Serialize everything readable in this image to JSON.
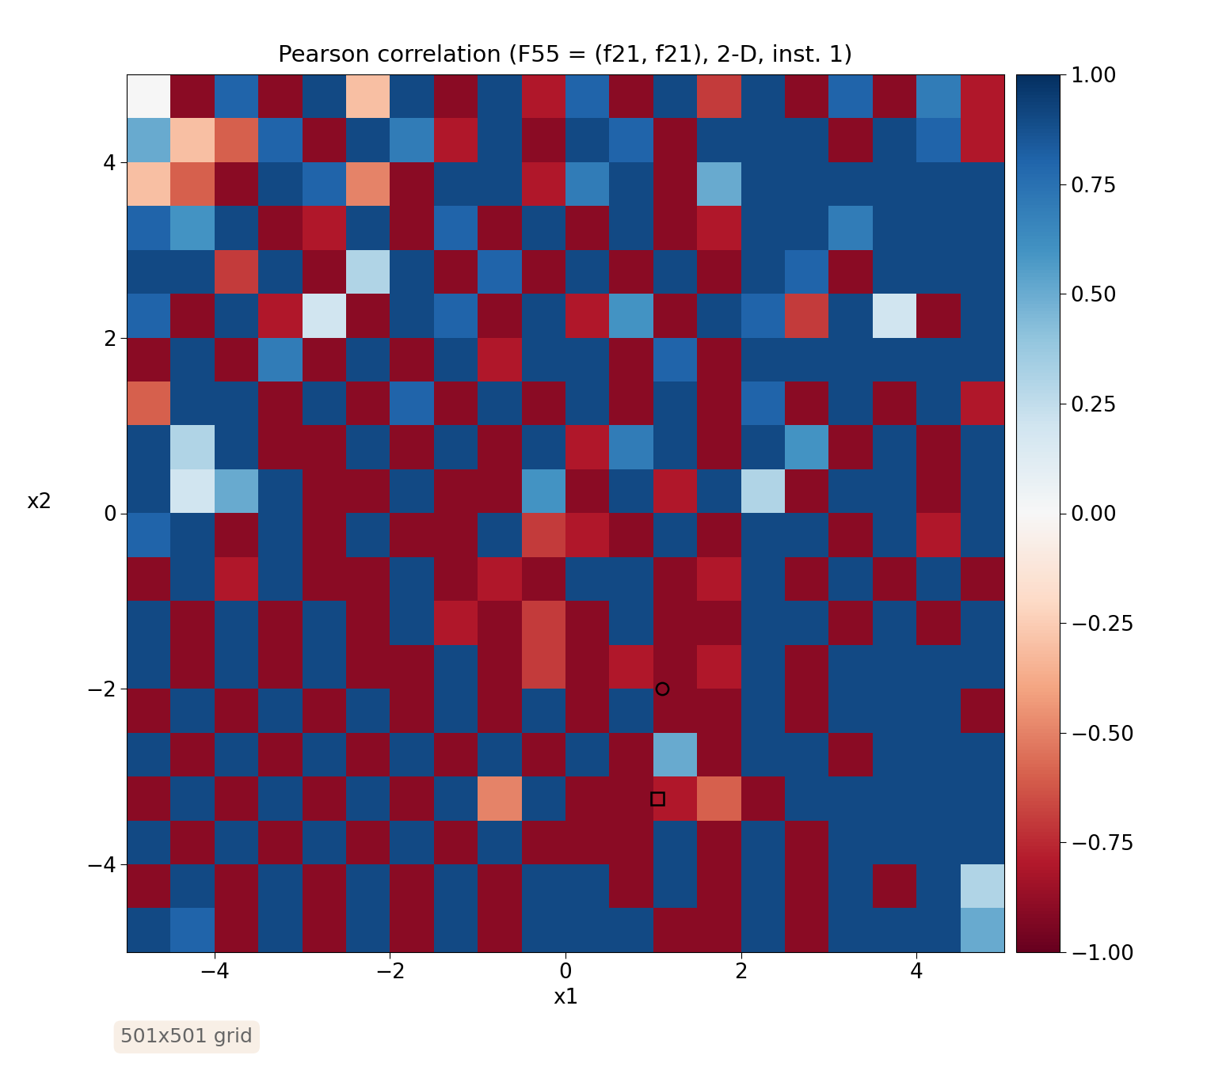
{
  "chart_data": {
    "type": "heatmap",
    "title": "Pearson correlation (F55 = (f21, f21), 2-D, inst. 1)",
    "x_label": "x1",
    "y_label": "x2",
    "xlim": [
      -5,
      5
    ],
    "ylim": [
      -5,
      5
    ],
    "xticks": [
      {
        "value": -4,
        "label": "−4"
      },
      {
        "value": -2,
        "label": "−2"
      },
      0,
      2,
      4
    ],
    "yticks": [
      {
        "value": -4,
        "label": "−4"
      },
      {
        "value": -2,
        "label": "−2"
      },
      0,
      2,
      4
    ],
    "color": "RdBu",
    "colorbar_range": [
      -1,
      1
    ],
    "colorbar_ticks": [
      {
        "value": -1,
        "label": "−1.00"
      },
      {
        "value": -0.75,
        "label": "−0.75"
      },
      {
        "value": -0.5,
        "label": "−0.50"
      },
      {
        "value": -0.25,
        "label": "−0.25"
      },
      {
        "value": 0,
        "label": "0.00"
      },
      {
        "value": 0.25,
        "label": "0.25"
      },
      {
        "value": 0.5,
        "label": "0.50"
      },
      {
        "value": 0.75,
        "label": "0.75"
      },
      {
        "value": 1,
        "label": "1.00"
      }
    ],
    "annotation": "501x501 grid",
    "points": [
      {
        "x": 1.1,
        "y": -2.0,
        "marker": "circle"
      },
      {
        "x": 1.05,
        "y": -3.25,
        "marker": "square"
      }
    ],
    "cells": [
      [
        0.0,
        -0.9,
        0.8,
        -0.9,
        0.9,
        -0.3,
        0.9,
        -0.9,
        0.9,
        -0.8,
        0.8,
        -0.9,
        0.9,
        -0.7,
        0.9,
        -0.9,
        0.8,
        -0.9,
        0.7,
        -0.8
      ],
      [
        0.5,
        -0.3,
        -0.6,
        0.8,
        -0.9,
        0.9,
        0.7,
        -0.8,
        0.9,
        -0.9,
        0.9,
        0.8,
        -0.9,
        0.9,
        0.9,
        0.9,
        -0.9,
        0.9,
        0.8,
        -0.8
      ],
      [
        -0.3,
        -0.6,
        -0.9,
        0.9,
        0.8,
        -0.5,
        -0.9,
        0.9,
        0.9,
        -0.8,
        0.7,
        0.9,
        -0.9,
        0.5,
        0.9,
        0.9,
        0.9,
        0.9,
        0.9,
        0.9
      ],
      [
        0.8,
        0.6,
        0.9,
        -0.9,
        -0.8,
        0.9,
        -0.9,
        0.8,
        -0.9,
        0.9,
        -0.9,
        0.9,
        -0.9,
        -0.8,
        0.9,
        0.9,
        0.7,
        0.9,
        0.9,
        0.9
      ],
      [
        0.9,
        0.9,
        -0.7,
        0.9,
        -0.9,
        0.3,
        0.9,
        -0.9,
        0.8,
        -0.9,
        0.9,
        -0.9,
        0.9,
        -0.9,
        0.9,
        0.8,
        -0.9,
        0.9,
        0.9,
        0.9
      ],
      [
        0.8,
        -0.9,
        0.9,
        -0.8,
        0.2,
        -0.9,
        0.9,
        0.8,
        -0.9,
        0.9,
        -0.8,
        0.6,
        -0.9,
        0.9,
        0.8,
        -0.7,
        0.9,
        0.2,
        -0.9,
        0.9
      ],
      [
        -0.9,
        0.9,
        -0.9,
        0.7,
        -0.9,
        0.9,
        -0.9,
        0.9,
        -0.8,
        0.9,
        0.9,
        -0.9,
        0.8,
        -0.9,
        0.9,
        0.9,
        0.9,
        0.9,
        0.9,
        0.9
      ],
      [
        -0.6,
        0.9,
        0.9,
        -0.9,
        0.9,
        -0.9,
        0.8,
        -0.9,
        0.9,
        -0.9,
        0.9,
        -0.9,
        0.9,
        -0.9,
        0.8,
        -0.9,
        0.9,
        -0.9,
        0.9,
        -0.8
      ],
      [
        0.9,
        0.3,
        0.9,
        -0.9,
        -0.9,
        0.9,
        -0.9,
        0.9,
        -0.9,
        0.9,
        -0.8,
        0.7,
        0.9,
        -0.9,
        0.9,
        0.6,
        -0.9,
        0.9,
        -0.9,
        0.9
      ],
      [
        0.9,
        0.2,
        0.5,
        0.9,
        -0.9,
        -0.9,
        0.9,
        -0.9,
        -0.9,
        0.6,
        -0.9,
        0.9,
        -0.8,
        0.9,
        0.3,
        -0.9,
        0.9,
        0.9,
        -0.9,
        0.9
      ],
      [
        0.8,
        0.9,
        -0.9,
        0.9,
        -0.9,
        0.9,
        -0.9,
        -0.9,
        0.9,
        -0.7,
        -0.8,
        -0.9,
        0.9,
        -0.9,
        0.9,
        0.9,
        -0.9,
        0.9,
        -0.8,
        0.9
      ],
      [
        -0.9,
        0.9,
        -0.8,
        0.9,
        -0.9,
        -0.9,
        0.9,
        -0.9,
        -0.8,
        -0.9,
        0.9,
        0.9,
        -0.9,
        -0.8,
        0.9,
        -0.9,
        0.9,
        -0.9,
        0.9,
        -0.9
      ],
      [
        0.9,
        -0.9,
        0.9,
        -0.9,
        0.9,
        -0.9,
        0.9,
        -0.8,
        -0.9,
        -0.7,
        -0.9,
        0.9,
        -0.9,
        -0.9,
        0.9,
        0.9,
        -0.9,
        0.9,
        -0.9,
        0.9
      ],
      [
        0.9,
        -0.9,
        0.9,
        -0.9,
        0.9,
        -0.9,
        -0.9,
        0.9,
        -0.9,
        -0.7,
        -0.9,
        -0.8,
        -0.9,
        -0.8,
        0.9,
        -0.9,
        0.9,
        0.9,
        0.9,
        0.9
      ],
      [
        -0.9,
        0.9,
        -0.9,
        0.9,
        -0.9,
        0.9,
        -0.9,
        0.9,
        -0.9,
        0.9,
        -0.9,
        0.9,
        -0.9,
        -0.9,
        0.9,
        -0.9,
        0.9,
        0.9,
        0.9,
        -0.9
      ],
      [
        0.9,
        -0.9,
        0.9,
        -0.9,
        0.9,
        -0.9,
        0.9,
        -0.9,
        0.9,
        -0.9,
        0.9,
        -0.9,
        0.5,
        -0.9,
        0.9,
        0.9,
        -0.9,
        0.9,
        0.9,
        0.9
      ],
      [
        -0.9,
        0.9,
        -0.9,
        0.9,
        -0.9,
        0.9,
        -0.9,
        0.9,
        -0.5,
        0.9,
        -0.9,
        -0.9,
        -0.8,
        -0.6,
        -0.9,
        0.9,
        0.9,
        0.9,
        0.9,
        0.9
      ],
      [
        0.9,
        -0.9,
        0.9,
        -0.9,
        0.9,
        -0.9,
        0.9,
        -0.9,
        0.9,
        -0.9,
        -0.9,
        -0.9,
        0.9,
        -0.9,
        0.9,
        -0.9,
        0.9,
        0.9,
        0.9,
        0.9
      ],
      [
        -0.9,
        0.9,
        -0.9,
        0.9,
        -0.9,
        0.9,
        -0.9,
        0.9,
        -0.9,
        0.9,
        0.9,
        -0.9,
        0.9,
        -0.9,
        0.9,
        -0.9,
        0.9,
        -0.9,
        0.9,
        0.3
      ],
      [
        0.9,
        0.8,
        -0.9,
        0.9,
        -0.9,
        0.9,
        -0.9,
        0.9,
        -0.9,
        0.9,
        0.9,
        0.9,
        -0.9,
        -0.9,
        0.9,
        -0.9,
        0.9,
        0.9,
        0.9,
        0.5
      ]
    ]
  }
}
